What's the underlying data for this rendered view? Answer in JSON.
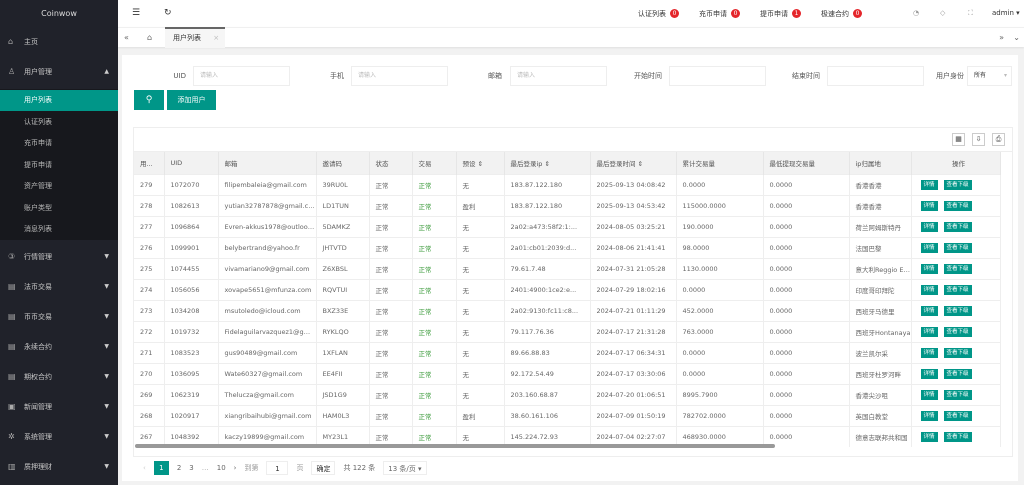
{
  "app": {
    "title": "Coinwow"
  },
  "sidebar": {
    "items": [
      {
        "label": "主页",
        "icon": "home-icon"
      },
      {
        "label": "用户管理",
        "icon": "user-icon",
        "expanded": true,
        "children": [
          "用户列表",
          "认证列表",
          "充币申请",
          "提币申请",
          "资产管理",
          "账户类型",
          "消息列表"
        ],
        "active": "用户列表"
      },
      {
        "label": "行情管理",
        "icon": "market-icon"
      },
      {
        "label": "法币交易",
        "icon": "chart-icon"
      },
      {
        "label": "币币交易",
        "icon": "chart-icon"
      },
      {
        "label": "永续合约",
        "icon": "chart-icon"
      },
      {
        "label": "期权合约",
        "icon": "chart-icon"
      },
      {
        "label": "新闻管理",
        "icon": "news-icon"
      },
      {
        "label": "系统管理",
        "icon": "gear-icon"
      },
      {
        "label": "质押理财",
        "icon": "finance-icon"
      }
    ]
  },
  "header": {
    "notices": [
      {
        "label": "认证列表",
        "count": "0"
      },
      {
        "label": "充币申请",
        "count": "0"
      },
      {
        "label": "提币申请",
        "count": "1"
      },
      {
        "label": "极速合约",
        "count": "0"
      }
    ],
    "user": "admin"
  },
  "tabs": {
    "active": "用户列表",
    "close": "×"
  },
  "filters": {
    "uid_label": "UID",
    "phone_label": "手机",
    "email_label": "邮箱",
    "start_label": "开始时间",
    "end_label": "结束时间",
    "role_label": "用户身份",
    "placeholder": "请输入",
    "role_value": "所有",
    "add_user": "添加用户"
  },
  "table": {
    "columns": [
      "用...",
      "UID",
      "邮箱",
      "邀请码",
      "状态",
      "交易",
      "预设 ⇕",
      "最后登录ip ⇕",
      "最后登录时间 ⇕",
      "累计交易量",
      "最低提现交易量",
      "ip归属地",
      "操作"
    ],
    "actions": [
      "详情",
      "查看下级"
    ],
    "rows": [
      [
        "279",
        "1072070",
        "filipembaleia@gmail.com",
        "39RU0L",
        "正常",
        "正常",
        "无",
        "183.87.122.180",
        "2025-09-13 04:08:42",
        "0.0000",
        "0.0000",
        "香港香港"
      ],
      [
        "278",
        "1082613",
        "yutian32787878@gmail.com",
        "LD1TUN",
        "正常",
        "正常",
        "盈利",
        "183.87.122.180",
        "2025-09-13 04:53:42",
        "115000.0000",
        "0.0000",
        "香港香港"
      ],
      [
        "277",
        "1096864",
        "Evren-akkus1978@outlook.com",
        "5DAMKZ",
        "正常",
        "正常",
        "无",
        "2a02:a473:58f2:1:...",
        "2024-08-05 03:25:21",
        "190.0000",
        "0.0000",
        "荷兰阿姆斯特丹"
      ],
      [
        "276",
        "1099901",
        "belybertrand@yahoo.fr",
        "JHTVTD",
        "正常",
        "正常",
        "无",
        "2a01:cb01:2039:d...",
        "2024-08-06 21:41:41",
        "98.0000",
        "0.0000",
        "法国巴黎"
      ],
      [
        "275",
        "1074455",
        "vivamariano9@gmail.com",
        "Z6XBSL",
        "正常",
        "正常",
        "无",
        "79.61.7.48",
        "2024-07-31 21:05:28",
        "1130.0000",
        "0.0000",
        "意大利Reggio Emilia"
      ],
      [
        "274",
        "1056056",
        "xovape5651@mfunza.com",
        "RQVTUI",
        "正常",
        "正常",
        "无",
        "2401:4900:1ce2:e...",
        "2024-07-29 18:02:16",
        "0.0000",
        "0.0000",
        "印度哥印拜陀"
      ],
      [
        "273",
        "1034208",
        "msutoledo@icloud.com",
        "BXZ33E",
        "正常",
        "正常",
        "无",
        "2a02:9130:fc11:c8...",
        "2024-07-21 01:11:29",
        "452.0000",
        "0.0000",
        "西班牙马德里"
      ],
      [
        "272",
        "1019732",
        "Fidelaguilarvazquez1@gmail.com",
        "RYKLQO",
        "正常",
        "正常",
        "无",
        "79.117.76.36",
        "2024-07-17 21:31:28",
        "763.0000",
        "0.0000",
        "西班牙Hontanaya"
      ],
      [
        "271",
        "1083523",
        "gus90489@gmail.com",
        "1XFLAN",
        "正常",
        "正常",
        "无",
        "89.66.88.83",
        "2024-07-17 06:34:31",
        "0.0000",
        "0.0000",
        "波兰凯尔采"
      ],
      [
        "270",
        "1036095",
        "Wate60327@gmail.com",
        "EE4FII",
        "正常",
        "正常",
        "无",
        "92.172.54.49",
        "2024-07-17 03:30:06",
        "0.0000",
        "0.0000",
        "西班牙杜罗河畔"
      ],
      [
        "269",
        "1062319",
        "Thelucza@gmail.com",
        "JSD1G9",
        "正常",
        "正常",
        "无",
        "203.160.68.87",
        "2024-07-20 01:06:51",
        "8995.7900",
        "0.0000",
        "香港尖沙咀"
      ],
      [
        "268",
        "1020917",
        "xiangribaihubi@gmail.com",
        "HAM0L3",
        "正常",
        "正常",
        "盈利",
        "38.60.161.106",
        "2024-07-09 01:50:19",
        "782702.0000",
        "0.0000",
        "英国白教堂"
      ],
      [
        "267",
        "1048392",
        "kaczy19899@gmail.com",
        "MY23L1",
        "正常",
        "正常",
        "无",
        "145.224.72.93",
        "2024-07-04 02:27:07",
        "468930.0000",
        "0.0000",
        "德意志联邦共和国"
      ]
    ]
  },
  "pagination": {
    "pages": [
      "1",
      "2",
      "3",
      "…",
      "10"
    ],
    "current": "1",
    "goto_label": "到第",
    "goto_value": "1",
    "page_unit": "页",
    "confirm": "确定",
    "total": "共 122 条",
    "page_size": "13 条/页"
  },
  "colors": {
    "accent": "#009688",
    "sidebar": "#20222a",
    "badge": "#e4262b"
  }
}
